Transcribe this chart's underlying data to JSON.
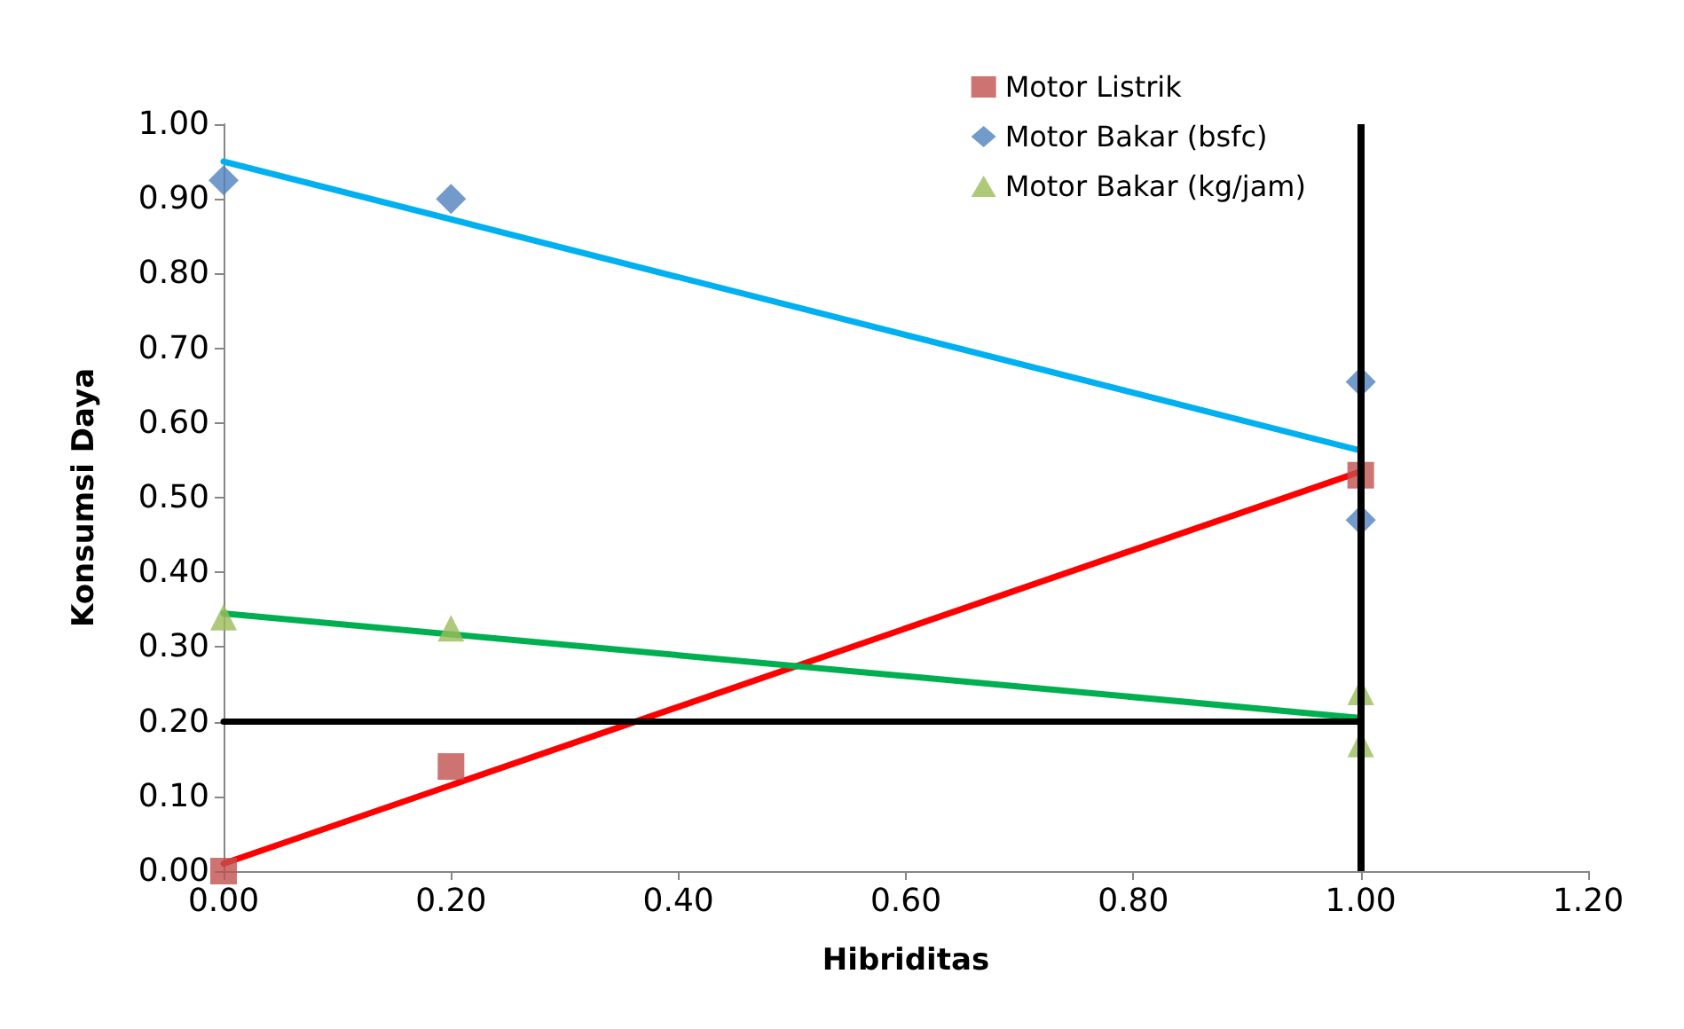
{
  "chart_data": {
    "type": "scatter",
    "xlabel": "Hibriditas",
    "ylabel": "Konsumsi Daya",
    "xlim": [
      0,
      1.2
    ],
    "xticks": [
      {
        "value": 0,
        "label": "0.00"
      },
      {
        "value": 0.2,
        "label": "0.20"
      },
      {
        "value": 0.4,
        "label": "0.40"
      },
      {
        "value": 0.6,
        "label": "0.60"
      },
      {
        "value": 0.8,
        "label": "0.80"
      },
      {
        "value": 1,
        "label": "1.00"
      },
      {
        "value": 1.2,
        "label": "1.20"
      }
    ],
    "ylim": [
      0,
      1
    ],
    "yticks": [
      {
        "value": 0,
        "label": "0.00"
      },
      {
        "value": 0.1,
        "label": "0.10"
      },
      {
        "value": 0.2,
        "label": "0.20"
      },
      {
        "value": 0.3,
        "label": "0.30"
      },
      {
        "value": 0.4,
        "label": "0.40"
      },
      {
        "value": 0.5,
        "label": "0.50"
      },
      {
        "value": 0.6,
        "label": "0.60"
      },
      {
        "value": 0.7,
        "label": "0.70"
      },
      {
        "value": 0.8,
        "label": "0.80"
      },
      {
        "value": 0.9,
        "label": "0.90"
      },
      {
        "value": 1,
        "label": "1.00"
      }
    ],
    "series": [
      {
        "type": "line",
        "color": "#00b0f0",
        "x": [
          0,
          1
        ],
        "values": [
          0.95,
          0.563
        ]
      },
      {
        "type": "line",
        "color": "#ff0000",
        "x": [
          0,
          1
        ],
        "values": [
          0.01,
          0.535
        ]
      },
      {
        "type": "line",
        "color": "#00b050",
        "x": [
          0,
          1
        ],
        "values": [
          0.345,
          0.205
        ]
      },
      {
        "type": "line",
        "color": "#000000",
        "x": [
          0,
          1
        ],
        "values": [
          0.2,
          0.2
        ]
      },
      {
        "name": "Motor Listrik",
        "color": "#c0504d",
        "marker": "square",
        "x": [
          0,
          0.2,
          1
        ],
        "values": [
          0,
          0.14,
          0.53
        ]
      },
      {
        "name": "Motor Bakar (bsfc)",
        "color": "#4f81bd",
        "marker": "diamond",
        "x": [
          0,
          0.2,
          1,
          1
        ],
        "values": [
          0.925,
          0.9,
          0.655,
          0.47
        ]
      },
      {
        "name": "Motor Bakar (kg/jam)",
        "color": "#9bbb59",
        "marker": "triangle",
        "x": [
          0,
          0.2,
          1,
          1
        ],
        "values": [
          0.34,
          0.325,
          0.24,
          0.17
        ]
      }
    ],
    "ref_lines": [
      {
        "axis": "x",
        "value": 1,
        "color": "#000000"
      }
    ],
    "legend": "top right",
    "grid": false
  }
}
